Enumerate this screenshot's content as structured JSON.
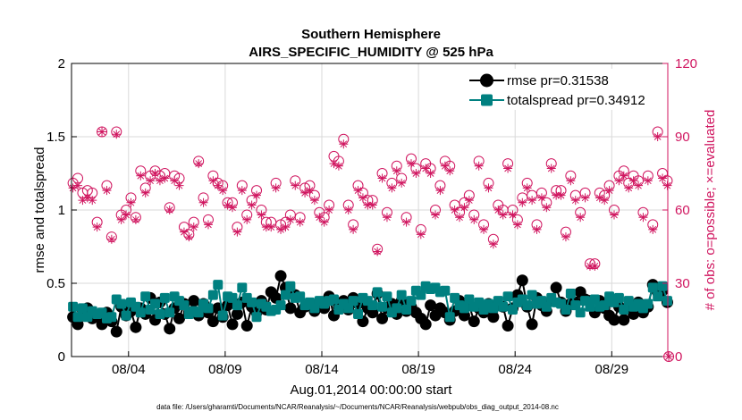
{
  "chart_data": {
    "type": "line",
    "title": "Southern Hemisphere",
    "subtitle": "AIRS_SPECIFIC_HUMIDITY @ 525 hPa",
    "xlabel": "Aug.01,2014 00:00:00 start",
    "ylabel": "rmse and totalspread",
    "y2label": "# of obs: o=possible; ×=evaluated",
    "footnote": "data file: /Users/gharamti/Documents/NCAR/Reanalysis/~/Documents/NCAR/Reanalysis/webpub/obs_diag_output_2014-08.nc",
    "x_tick_labels": [
      "08/04",
      "08/09",
      "08/14",
      "08/19",
      "08/24",
      "08/29"
    ],
    "x_tick_days": [
      4,
      9,
      14,
      19,
      24,
      29
    ],
    "xlim": [
      1.05,
      31.9
    ],
    "ylim": [
      0,
      2
    ],
    "y_ticks": [
      "0",
      "0.5",
      "1",
      "1.5",
      "2"
    ],
    "y2lim": [
      0,
      120
    ],
    "y2_ticks": [
      "0",
      "30",
      "60",
      "90",
      "120"
    ],
    "grid": true,
    "legend_position": "top-right",
    "colors": {
      "rmse": "#000000",
      "totalspread": "#008080",
      "obs": "#d0155f"
    },
    "x": [
      1.125,
      1.375,
      1.625,
      1.875,
      2.125,
      2.375,
      2.625,
      2.875,
      3.125,
      3.375,
      3.625,
      3.875,
      4.125,
      4.375,
      4.625,
      4.875,
      5.125,
      5.375,
      5.625,
      5.875,
      6.125,
      6.375,
      6.625,
      6.875,
      7.125,
      7.375,
      7.625,
      7.875,
      8.125,
      8.375,
      8.625,
      8.875,
      9.125,
      9.375,
      9.625,
      9.875,
      10.125,
      10.375,
      10.625,
      10.875,
      11.125,
      11.375,
      11.625,
      11.875,
      12.125,
      12.375,
      12.625,
      12.875,
      13.125,
      13.375,
      13.625,
      13.875,
      14.125,
      14.375,
      14.625,
      14.875,
      15.125,
      15.375,
      15.625,
      15.875,
      16.125,
      16.375,
      16.625,
      16.875,
      17.125,
      17.375,
      17.625,
      17.875,
      18.125,
      18.375,
      18.625,
      18.875,
      19.125,
      19.375,
      19.625,
      19.875,
      20.125,
      20.375,
      20.625,
      20.875,
      21.125,
      21.375,
      21.625,
      21.875,
      22.125,
      22.375,
      22.625,
      22.875,
      23.125,
      23.375,
      23.625,
      23.875,
      24.125,
      24.375,
      24.625,
      24.875,
      25.125,
      25.375,
      25.625,
      25.875,
      26.125,
      26.375,
      26.625,
      26.875,
      27.125,
      27.375,
      27.625,
      27.875,
      28.125,
      28.375,
      28.625,
      28.875,
      29.125,
      29.375,
      29.625,
      29.875,
      30.125,
      30.375,
      30.625,
      30.875,
      31.125,
      31.375,
      31.625,
      31.875
    ],
    "series": [
      {
        "name": "rmse pr=0.31538",
        "marker": "circle",
        "values": [
          0.27,
          0.22,
          0.32,
          0.33,
          0.26,
          0.28,
          0.22,
          0.3,
          0.24,
          0.17,
          0.34,
          0.28,
          0.31,
          0.2,
          0.33,
          0.29,
          0.4,
          0.25,
          0.37,
          0.29,
          0.19,
          0.33,
          0.26,
          0.36,
          0.3,
          0.38,
          0.28,
          0.36,
          0.3,
          0.24,
          0.33,
          0.27,
          0.35,
          0.22,
          0.29,
          0.37,
          0.21,
          0.34,
          0.3,
          0.38,
          0.32,
          0.44,
          0.4,
          0.55,
          0.47,
          0.33,
          0.42,
          0.3,
          0.34,
          0.36,
          0.31,
          0.37,
          0.33,
          0.41,
          0.28,
          0.34,
          0.38,
          0.32,
          0.4,
          0.36,
          0.24,
          0.33,
          0.3,
          0.43,
          0.26,
          0.33,
          0.36,
          0.29,
          0.38,
          0.31,
          0.34,
          0.3,
          0.26,
          0.22,
          0.35,
          0.28,
          0.33,
          0.3,
          0.25,
          0.31,
          0.38,
          0.28,
          0.35,
          0.24,
          0.33,
          0.3,
          0.36,
          0.27,
          0.35,
          0.34,
          0.21,
          0.33,
          0.42,
          0.52,
          0.34,
          0.22,
          0.4,
          0.35,
          0.31,
          0.38,
          0.47,
          0.37,
          0.31,
          0.36,
          0.37,
          0.44,
          0.39,
          0.38,
          0.3,
          0.38,
          0.33,
          0.28,
          0.25,
          0.34,
          0.25,
          0.33,
          0.29,
          0.37,
          0.3,
          0.34,
          0.49,
          0.44,
          0.45,
          0.37
        ]
      },
      {
        "name": "totalspread pr=0.34912",
        "marker": "square",
        "values": [
          0.34,
          0.27,
          0.33,
          0.27,
          0.31,
          0.29,
          0.3,
          0.26,
          0.27,
          0.39,
          0.36,
          0.28,
          0.37,
          0.34,
          0.3,
          0.41,
          0.32,
          0.36,
          0.29,
          0.4,
          0.3,
          0.41,
          0.38,
          0.35,
          0.29,
          0.31,
          0.3,
          0.36,
          0.33,
          0.42,
          0.49,
          0.28,
          0.41,
          0.4,
          0.35,
          0.47,
          0.4,
          0.37,
          0.27,
          0.36,
          0.34,
          0.31,
          0.32,
          0.35,
          0.42,
          0.48,
          0.4,
          0.41,
          0.35,
          0.37,
          0.33,
          0.38,
          0.36,
          0.38,
          0.39,
          0.32,
          0.36,
          0.33,
          0.38,
          0.29,
          0.4,
          0.38,
          0.35,
          0.44,
          0.34,
          0.41,
          0.3,
          0.33,
          0.42,
          0.32,
          0.38,
          0.45,
          0.42,
          0.48,
          0.46,
          0.47,
          0.44,
          0.45,
          0.27,
          0.4,
          0.35,
          0.33,
          0.39,
          0.34,
          0.37,
          0.32,
          0.36,
          0.33,
          0.38,
          0.34,
          0.41,
          0.32,
          0.37,
          0.39,
          0.35,
          0.42,
          0.36,
          0.38,
          0.34,
          0.4,
          0.37,
          0.36,
          0.32,
          0.43,
          0.35,
          0.3,
          0.38,
          0.34,
          0.39,
          0.34,
          0.35,
          0.41,
          0.37,
          0.4,
          0.32,
          0.38,
          0.34,
          0.36,
          0.33,
          0.36,
          0.47,
          0.41,
          0.48,
          0.38
        ]
      },
      {
        "name": "possible",
        "marker": "open-circle",
        "axis": "right",
        "values": [
          71,
          73,
          67,
          68,
          67,
          55,
          92,
          70,
          49,
          92,
          58,
          60,
          65,
          57,
          76,
          69,
          74,
          76,
          74,
          75,
          61,
          74,
          73,
          53,
          50,
          55,
          80,
          65,
          56,
          74,
          71,
          70,
          63,
          63,
          53,
          70,
          58,
          64,
          68,
          60,
          55,
          55,
          71,
          54,
          55,
          58,
          72,
          57,
          69,
          70,
          66,
          59,
          57,
          62,
          82,
          80,
          89,
          62,
          54,
          70,
          67,
          64,
          64,
          44,
          75,
          59,
          71,
          78,
          73,
          57,
          81,
          77,
          52,
          79,
          77,
          60,
          70,
          80,
          78,
          62,
          59,
          63,
          66,
          58,
          80,
          54,
          71,
          48,
          62,
          60,
          79,
          60,
          56,
          65,
          71,
          66,
          54,
          67,
          63,
          79,
          68,
          68,
          51,
          74,
          66,
          59,
          67,
          38,
          38,
          67,
          66,
          70,
          60,
          74,
          76,
          71,
          74,
          72,
          59,
          74,
          54,
          92,
          75,
          72
        ]
      },
      {
        "name": "evaluated",
        "marker": "star",
        "axis": "right",
        "values": [
          69,
          70,
          64,
          65,
          64,
          53,
          92,
          68,
          48,
          91,
          56,
          58,
          63,
          56,
          74,
          67,
          72,
          75,
          72,
          73,
          60,
          72,
          70,
          51,
          49,
          53,
          79,
          63,
          54,
          72,
          70,
          68,
          62,
          61,
          51,
          68,
          56,
          62,
          66,
          58,
          53,
          53,
          69,
          52,
          53,
          56,
          70,
          55,
          67,
          68,
          64,
          57,
          55,
          60,
          79,
          78,
          87,
          60,
          52,
          68,
          65,
          62,
          62,
          43,
          73,
          57,
          69,
          76,
          71,
          55,
          79,
          75,
          50,
          77,
          75,
          58,
          68,
          78,
          76,
          60,
          57,
          61,
          64,
          56,
          78,
          52,
          69,
          46,
          60,
          58,
          77,
          58,
          54,
          63,
          69,
          64,
          52,
          65,
          61,
          77,
          66,
          66,
          49,
          72,
          64,
          57,
          65,
          37,
          37,
          65,
          64,
          68,
          58,
          72,
          74,
          69,
          72,
          70,
          57,
          72,
          52,
          90,
          73,
          70
        ]
      }
    ],
    "extra_points": [
      {
        "series": "possible",
        "x": 31.95,
        "value": 0
      },
      {
        "series": "evaluated",
        "x": 31.95,
        "value": 0
      }
    ]
  },
  "legend": {
    "rmse": "rmse pr=0.31538",
    "totalspread": "totalspread pr=0.34912"
  }
}
